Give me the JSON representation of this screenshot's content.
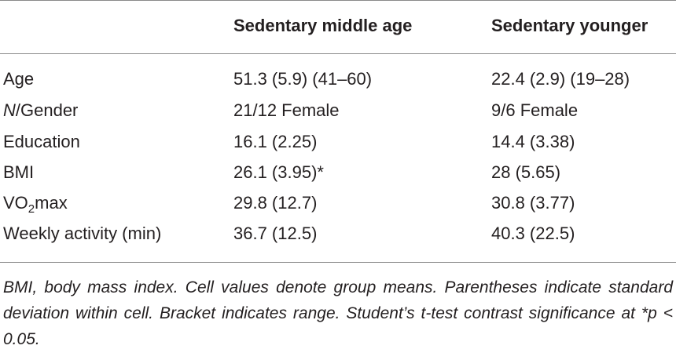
{
  "header": {
    "col1": "Sedentary middle age",
    "col2": "Sedentary younger"
  },
  "rows": [
    {
      "label": "Age",
      "col1": "51.3 (5.9) (41–60)",
      "col2": "22.4 (2.9) (19–28)"
    },
    {
      "label_italic": "N",
      "label_rest": "/Gender",
      "col1": "21/12 Female",
      "col2": "9/6 Female"
    },
    {
      "label": "Education",
      "col1": "16.1 (2.25)",
      "col2": "14.4 (3.38)"
    },
    {
      "label": "BMI",
      "col1": "26.1 (3.95)*",
      "col2": "28 (5.65)"
    },
    {
      "label_pre": "VO",
      "label_sub": "2",
      "label_post": "max",
      "col1": "29.8 (12.7)",
      "col2": "30.8 (3.77)"
    },
    {
      "label": "Weekly activity (min)",
      "col1": "36.7 (12.5)",
      "col2": "40.3 (22.5)"
    }
  ],
  "footnote": "BMI, body mass index. Cell values denote group means. Parentheses indicate standard deviation within cell. Bracket indicates range. Student’s t-test contrast significance at *p < 0.05."
}
